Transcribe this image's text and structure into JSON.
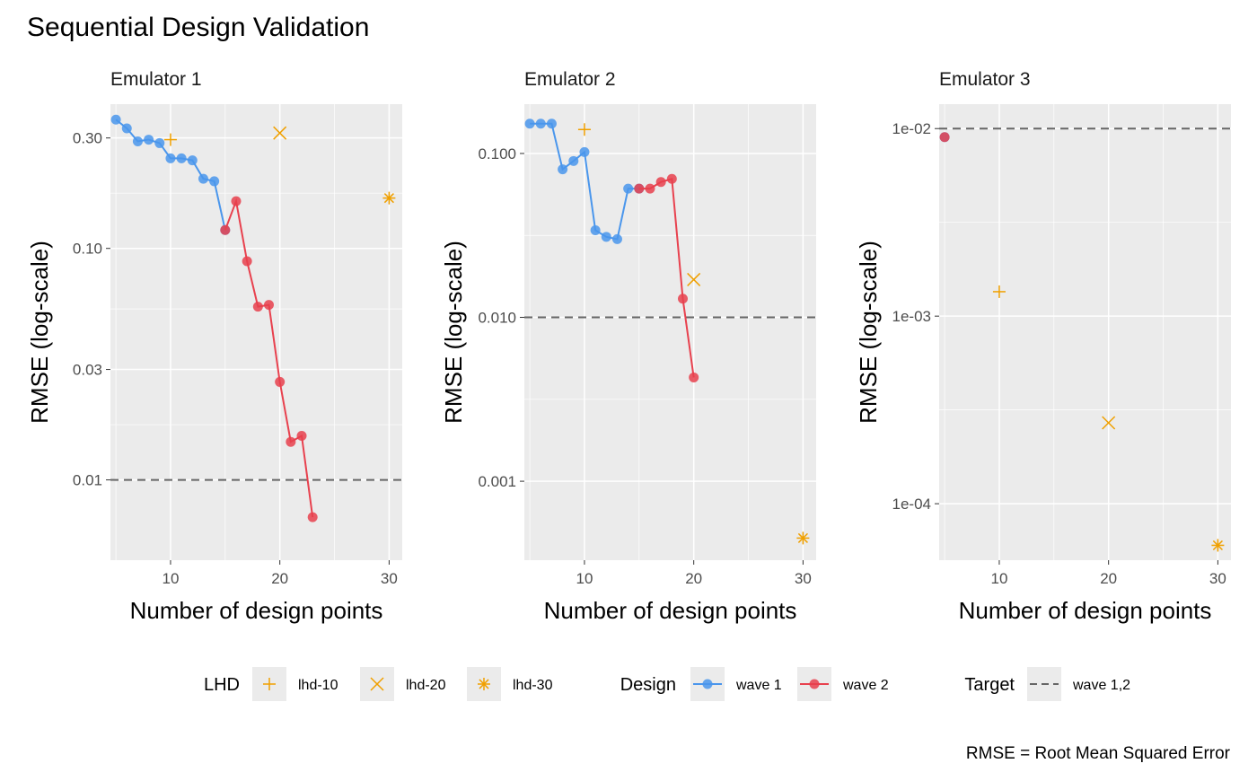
{
  "title": "Sequential Design Validation",
  "caption": "RMSE = Root Mean Squared Error",
  "colors": {
    "panel_bg": "#ebebeb",
    "grid": "#ffffff",
    "wave1": "#4a96ec",
    "wave2": "#e8414e",
    "overlap": "#c5203c",
    "lhd": "#f0a000",
    "target": "#666666",
    "axis_text": "#4d4d4d"
  },
  "legend": {
    "lhd": {
      "title": "LHD",
      "items": [
        "lhd-10",
        "lhd-20",
        "lhd-30"
      ]
    },
    "design": {
      "title": "Design",
      "items": [
        "wave 1",
        "wave 2"
      ]
    },
    "target": {
      "title": "Target",
      "items": [
        "wave 1,2"
      ]
    }
  },
  "chart_data": [
    {
      "type": "line",
      "title": "Emulator 1",
      "xlabel": "Number of design points",
      "ylabel": "RMSE (log-scale)",
      "log_y": true,
      "xlim": [
        4.5,
        31.2
      ],
      "ylim": [
        0.0045,
        0.42
      ],
      "x_ticks": [
        10,
        20,
        30
      ],
      "y_ticks": [
        0.01,
        0.03,
        0.1,
        0.3
      ],
      "y_tick_labels": [
        "0.01",
        "0.03",
        "0.10",
        "0.30"
      ],
      "target": 0.01,
      "series": [
        {
          "name": "wave 1",
          "x": [
            5,
            6,
            7,
            8,
            9,
            10,
            11,
            12,
            13,
            14,
            15
          ],
          "y": [
            0.36,
            0.33,
            0.29,
            0.295,
            0.285,
            0.245,
            0.245,
            0.24,
            0.2,
            0.195,
            0.12
          ]
        },
        {
          "name": "wave 2",
          "x": [
            15,
            16,
            17,
            18,
            19,
            20,
            21,
            22,
            23
          ],
          "y": [
            0.12,
            0.16,
            0.088,
            0.056,
            0.057,
            0.0265,
            0.0146,
            0.0155,
            0.0069
          ]
        }
      ],
      "lhd": [
        {
          "name": "lhd-10",
          "x": 10,
          "y": 0.295
        },
        {
          "name": "lhd-20",
          "x": 20,
          "y": 0.315
        },
        {
          "name": "lhd-30",
          "x": 30,
          "y": 0.165
        }
      ]
    },
    {
      "type": "line",
      "title": "Emulator 2",
      "xlabel": "Number of design points",
      "ylabel": "RMSE (log-scale)",
      "log_y": true,
      "xlim": [
        4.5,
        31.2
      ],
      "ylim": [
        0.00033,
        0.2
      ],
      "x_ticks": [
        10,
        20,
        30
      ],
      "y_ticks": [
        0.001,
        0.01,
        0.1
      ],
      "y_tick_labels": [
        "0.001",
        "0.010",
        "0.100"
      ],
      "target": 0.01,
      "series": [
        {
          "name": "wave 1",
          "x": [
            5,
            6,
            7,
            8,
            9,
            10,
            11,
            12,
            13,
            14,
            15
          ],
          "y": [
            0.152,
            0.152,
            0.152,
            0.08,
            0.09,
            0.102,
            0.034,
            0.031,
            0.03,
            0.061,
            0.061
          ]
        },
        {
          "name": "wave 2",
          "x": [
            15,
            16,
            17,
            18,
            19,
            20
          ],
          "y": [
            0.061,
            0.061,
            0.067,
            0.07,
            0.013,
            0.0043
          ]
        }
      ],
      "lhd": [
        {
          "name": "lhd-10",
          "x": 10,
          "y": 0.14
        },
        {
          "name": "lhd-20",
          "x": 20,
          "y": 0.017
        },
        {
          "name": "lhd-30",
          "x": 30,
          "y": 0.00045
        }
      ]
    },
    {
      "type": "scatter",
      "title": "Emulator 3",
      "xlabel": "Number of design points",
      "ylabel": "RMSE (log-scale)",
      "log_y": true,
      "xlim": [
        4.5,
        31.2
      ],
      "ylim": [
        5e-05,
        0.0135
      ],
      "x_ticks": [
        10,
        20,
        30
      ],
      "y_ticks": [
        0.0001,
        0.001,
        0.01
      ],
      "y_tick_labels": [
        "1e-04",
        "1e-03",
        "1e-02"
      ],
      "target": 0.01,
      "series": [
        {
          "name": "wave 1",
          "x": [
            5
          ],
          "y": [
            0.009
          ]
        },
        {
          "name": "wave 2",
          "x": [
            5
          ],
          "y": [
            0.009
          ]
        }
      ],
      "lhd": [
        {
          "name": "lhd-10",
          "x": 10,
          "y": 0.00135
        },
        {
          "name": "lhd-20",
          "x": 20,
          "y": 0.00027
        },
        {
          "name": "lhd-30",
          "x": 30,
          "y": 6e-05
        }
      ]
    }
  ]
}
